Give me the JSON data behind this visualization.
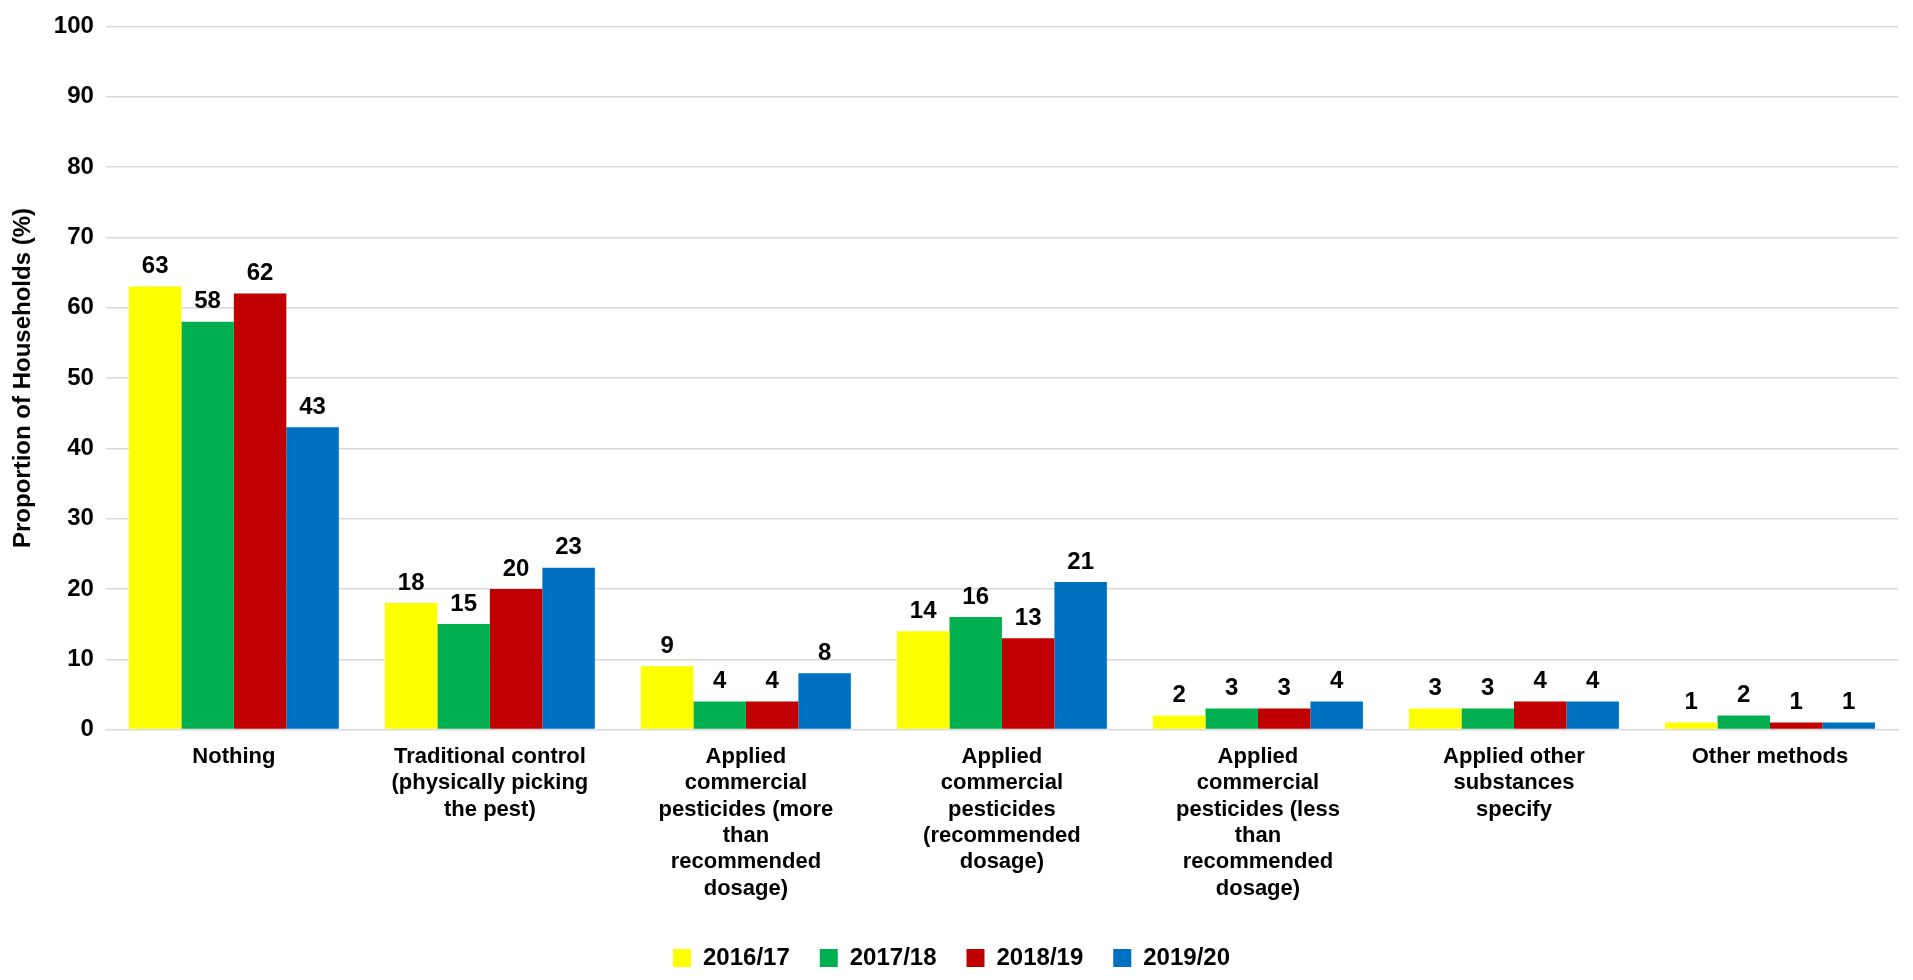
{
  "chart_data": {
    "type": "bar",
    "ylabel": "Proportion of Households (%)",
    "categories": [
      "Nothing",
      "Traditional control (physically picking the pest)",
      "Applied commercial pesticides (more than recommended dosage)",
      "Applied commercial pesticides (recommended dosage)",
      "Applied commercial pesticides (less than recommended dosage)",
      "Applied other substances specify",
      "Other methods"
    ],
    "series": [
      {
        "name": "2016/17",
        "color": "#ffff00",
        "values": [
          63,
          18,
          9,
          14,
          2,
          3,
          1
        ]
      },
      {
        "name": "2017/18",
        "color": "#00b050",
        "values": [
          58,
          15,
          4,
          16,
          3,
          3,
          2
        ]
      },
      {
        "name": "2018/19",
        "color": "#c00000",
        "values": [
          62,
          20,
          4,
          13,
          3,
          4,
          1
        ]
      },
      {
        "name": "2019/20",
        "color": "#0070c0",
        "values": [
          43,
          23,
          8,
          21,
          4,
          4,
          1
        ]
      }
    ],
    "ylim": [
      0,
      100
    ],
    "yticks": [
      0,
      10,
      20,
      30,
      40,
      50,
      60,
      70,
      80,
      90,
      100
    ],
    "grid": "y",
    "legend": "bottom",
    "data_labels": true
  }
}
